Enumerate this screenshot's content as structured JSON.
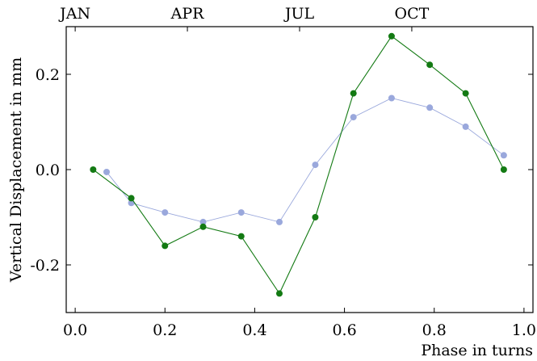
{
  "chart_data": {
    "type": "line",
    "title": "",
    "xlabel": "Phase in turns",
    "ylabel": "Vertical Displacement in mm",
    "xlim": [
      -0.02,
      1.02
    ],
    "ylim": [
      -0.3,
      0.3
    ],
    "x_ticks": [
      0.0,
      0.2,
      0.4,
      0.6,
      0.8,
      1.0
    ],
    "x_tick_labels": [
      "0.0",
      "0.2",
      "0.4",
      "0.6",
      "0.8",
      "1.0"
    ],
    "y_ticks": [
      -0.2,
      0.0,
      0.2
    ],
    "y_tick_labels": [
      "-0.2",
      "0.0",
      "0.2"
    ],
    "top_axis_labels": [
      {
        "label": "JAN",
        "x": 0.0
      },
      {
        "label": "APR",
        "x": 0.25
      },
      {
        "label": "JUL",
        "x": 0.5
      },
      {
        "label": "OCT",
        "x": 0.75
      }
    ],
    "grid": false,
    "series": [
      {
        "color": "#9aa8dc",
        "x": [
          0.07,
          0.125,
          0.2,
          0.285,
          0.37,
          0.455,
          0.535,
          0.62,
          0.705,
          0.79,
          0.87,
          0.955
        ],
        "y": [
          -0.005,
          -0.07,
          -0.09,
          -0.11,
          -0.09,
          -0.11,
          0.01,
          0.11,
          0.15,
          0.13,
          0.09,
          0.03
        ]
      },
      {
        "color": "#137a13",
        "x": [
          0.04,
          0.125,
          0.2,
          0.285,
          0.37,
          0.455,
          0.535,
          0.62,
          0.705,
          0.79,
          0.87,
          0.955
        ],
        "y": [
          0.0,
          -0.06,
          -0.16,
          -0.12,
          -0.14,
          -0.26,
          -0.1,
          0.16,
          0.28,
          0.22,
          0.16,
          0.0
        ]
      }
    ]
  }
}
